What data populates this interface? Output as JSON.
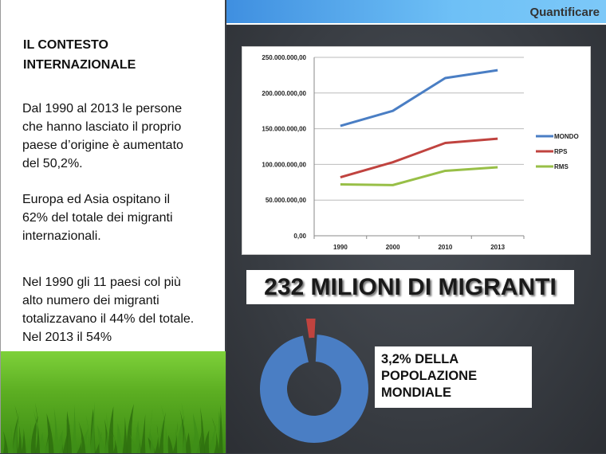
{
  "header": {
    "title": "Quantificare",
    "color": "#5bb2f2"
  },
  "left": {
    "heading": [
      "IL CONTESTO",
      "INTERNAZIONALE"
    ],
    "paragraphs": [
      [
        "Dal 1990 al 2013 le persone",
        "che hanno lasciato il proprio",
        "paese d’origine è aumentato",
        "del 50,2%."
      ],
      [
        "Europa ed Asia ospitano il",
        "62% del totale dei migranti",
        "internazionali."
      ],
      [
        "Nel 1990 gli 11 paesi col più",
        "alto numero dei migranti",
        "totalizzavano il 44% del totale.",
        "Nel 2013 il 54%"
      ]
    ]
  },
  "banner": "232 MILIONI DI MIGRANTI",
  "info": [
    "3,2% DELLA",
    "POPOLAZIONE",
    "MONDIALE"
  ],
  "chart_data": [
    {
      "type": "line",
      "categories": [
        "1990",
        "2000",
        "2010",
        "2013"
      ],
      "ylim": [
        0,
        250000000
      ],
      "yticks": [
        "0,00",
        "50.000.000,00",
        "100.000.000,00",
        "150.000.000,00",
        "200.000.000,00",
        "250.000.000,00"
      ],
      "grid": true,
      "legend": "right",
      "series": [
        {
          "name": "MONDO",
          "color": "#4a7ec4",
          "values": [
            154000000,
            175000000,
            221000000,
            232000000
          ]
        },
        {
          "name": "RPS",
          "color": "#c0433f",
          "values": [
            82000000,
            103000000,
            130000000,
            136000000
          ]
        },
        {
          "name": "RMS",
          "color": "#98bf47",
          "values": [
            72000000,
            71000000,
            91000000,
            96000000
          ]
        }
      ]
    },
    {
      "type": "pie",
      "donut": true,
      "slices": [
        {
          "value": 96.8,
          "color": "#4a7ec4"
        },
        {
          "value": 3.2,
          "color": "#c0433f",
          "exploded": true
        }
      ]
    }
  ]
}
